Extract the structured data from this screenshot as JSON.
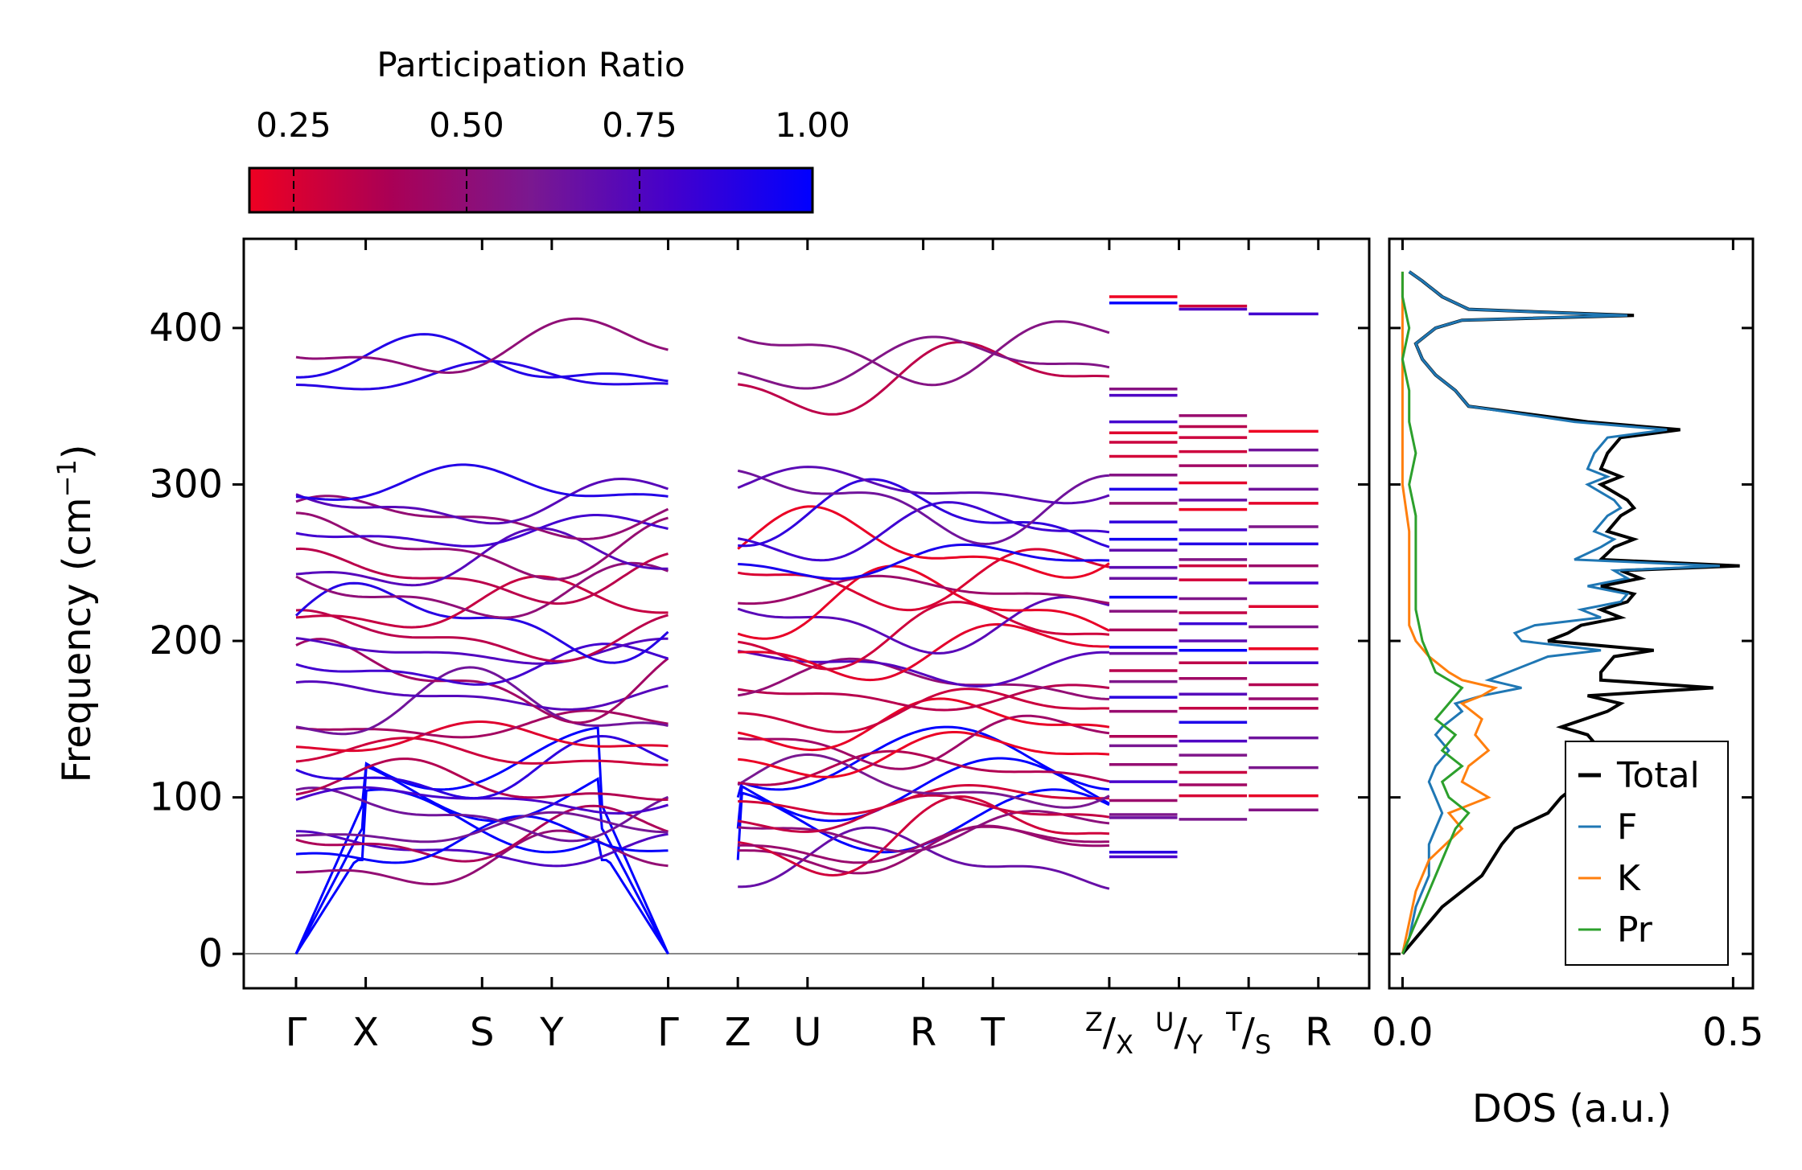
{
  "chart_data": [
    {
      "type": "line",
      "title": "",
      "xlabel": "",
      "ylabel": "Frequency (cm⁻¹)",
      "ylim": [
        -22,
        457
      ],
      "yticks": [
        0,
        100,
        200,
        300,
        400
      ],
      "colorbar": {
        "label": "Participation Ratio",
        "range": [
          0.186,
          1.0
        ],
        "ticks": [
          "0.25",
          "0.50",
          "0.75",
          "1.00"
        ],
        "tick_values": [
          0.25,
          0.5,
          0.75,
          1.0
        ],
        "colormap": [
          "#ee0022",
          "#990066",
          "#7a1890",
          "#5c00cc",
          "#0000ff"
        ]
      },
      "path_segments": [
        {
          "labels": [
            "Γ",
            "X",
            "S",
            "Y",
            "Γ"
          ],
          "positions": [
            0,
            1,
            2.67,
            3.67,
            5.34
          ]
        },
        {
          "labels": [
            "Z",
            "U",
            "R",
            "T",
            "Z"
          ],
          "positions": [
            6.34,
            7.34,
            9.0,
            10.0,
            11.67
          ]
        }
      ],
      "x_tick_labels": [
        "Γ",
        "X",
        "S",
        "Y",
        "Γ",
        "Z",
        "U",
        "R",
        "T",
        "Z/X",
        "U/Y",
        "T/S",
        "R"
      ],
      "x_tick_positions": [
        0,
        1,
        2.67,
        3.67,
        5.34,
        6.34,
        7.34,
        9.0,
        10.0,
        11.67,
        12.67,
        13.67,
        14.67
      ],
      "x_range": [
        -0.75,
        15.4
      ],
      "short_bands": {
        "Z/X": [
          420,
          416,
          361,
          357,
          340,
          333,
          327,
          318,
          306,
          297,
          288,
          276,
          265,
          258,
          247,
          240,
          228,
          219,
          207,
          196,
          192,
          181,
          174,
          164,
          155,
          139,
          133,
          121,
          110,
          98,
          89,
          87,
          65,
          62
        ],
        "U/Y": [
          414,
          412,
          344,
          337,
          330,
          321,
          312,
          301,
          290,
          284,
          271,
          262,
          252,
          248,
          239,
          227,
          218,
          211,
          200,
          194,
          186,
          176,
          166,
          157,
          148,
          136,
          127,
          116,
          108,
          101,
          86
        ],
        "T/S": [
          409,
          334,
          322,
          312,
          297,
          288,
          273,
          262,
          248,
          237,
          222,
          209,
          195,
          186,
          172,
          163,
          157,
          138,
          119,
          101,
          92
        ]
      }
    },
    {
      "type": "line",
      "xlabel": "DOS (a.u.)",
      "ylabel": "",
      "xlim": [
        -0.02,
        0.53
      ],
      "xticks": [
        0.0,
        0.5
      ],
      "xtick_labels": [
        "0.0",
        "0.5"
      ],
      "ylim": [
        -22,
        457
      ],
      "legend": "lower-right",
      "series": [
        {
          "name": "Total",
          "color": "#000000",
          "freq": [
            0,
            10,
            30,
            50,
            70,
            80,
            90,
            100,
            110,
            120,
            130,
            140,
            145,
            155,
            160,
            165,
            170,
            175,
            180,
            190,
            194,
            200,
            205,
            210,
            215,
            220,
            225,
            230,
            235,
            240,
            245,
            248,
            252,
            260,
            265,
            270,
            280,
            285,
            290,
            300,
            305,
            310,
            320,
            330,
            335,
            340,
            350,
            360,
            370,
            380,
            390,
            400,
            405,
            408,
            412,
            420,
            430,
            436
          ],
          "values": [
            0,
            0.02,
            0.06,
            0.12,
            0.15,
            0.17,
            0.22,
            0.24,
            0.27,
            0.26,
            0.3,
            0.28,
            0.24,
            0.31,
            0.33,
            0.28,
            0.47,
            0.3,
            0.3,
            0.32,
            0.38,
            0.22,
            0.25,
            0.27,
            0.33,
            0.3,
            0.34,
            0.35,
            0.3,
            0.36,
            0.33,
            0.51,
            0.3,
            0.32,
            0.35,
            0.31,
            0.33,
            0.35,
            0.34,
            0.3,
            0.33,
            0.3,
            0.31,
            0.33,
            0.42,
            0.28,
            0.1,
            0.08,
            0.05,
            0.03,
            0.02,
            0.05,
            0.09,
            0.35,
            0.1,
            0.06,
            0.03,
            0.01
          ]
        },
        {
          "name": "F",
          "color": "#1f77b4",
          "freq": [
            0,
            10,
            30,
            50,
            70,
            80,
            90,
            100,
            110,
            120,
            130,
            140,
            145,
            155,
            160,
            165,
            170,
            175,
            180,
            190,
            194,
            200,
            205,
            210,
            215,
            220,
            225,
            230,
            235,
            240,
            245,
            248,
            252,
            260,
            265,
            270,
            280,
            285,
            290,
            300,
            305,
            310,
            320,
            330,
            335,
            340,
            350,
            360,
            370,
            380,
            390,
            400,
            405,
            408,
            412,
            420,
            430,
            436
          ],
          "values": [
            0,
            0.01,
            0.02,
            0.04,
            0.04,
            0.05,
            0.06,
            0.05,
            0.04,
            0.05,
            0.07,
            0.05,
            0.06,
            0.09,
            0.08,
            0.12,
            0.18,
            0.13,
            0.16,
            0.22,
            0.3,
            0.18,
            0.17,
            0.2,
            0.3,
            0.27,
            0.33,
            0.34,
            0.28,
            0.34,
            0.32,
            0.48,
            0.26,
            0.3,
            0.32,
            0.29,
            0.31,
            0.33,
            0.32,
            0.28,
            0.31,
            0.28,
            0.29,
            0.31,
            0.4,
            0.26,
            0.1,
            0.08,
            0.05,
            0.03,
            0.02,
            0.05,
            0.09,
            0.34,
            0.1,
            0.06,
            0.03,
            0.01
          ]
        },
        {
          "name": "K",
          "color": "#ff7f0e",
          "freq": [
            0,
            20,
            40,
            60,
            80,
            90,
            100,
            110,
            120,
            130,
            140,
            150,
            160,
            165,
            170,
            175,
            180,
            190,
            200,
            210,
            230,
            250,
            270,
            300,
            330,
            360,
            400,
            436
          ],
          "values": [
            0,
            0.01,
            0.02,
            0.04,
            0.09,
            0.07,
            0.13,
            0.09,
            0.1,
            0.13,
            0.11,
            0.12,
            0.09,
            0.12,
            0.14,
            0.09,
            0.07,
            0.04,
            0.02,
            0.01,
            0.01,
            0.01,
            0.01,
            0.0,
            0.0,
            0.0,
            0.0,
            0.0
          ]
        },
        {
          "name": "Pr",
          "color": "#2ca02c",
          "freq": [
            0,
            20,
            40,
            60,
            80,
            90,
            100,
            110,
            120,
            130,
            140,
            150,
            160,
            170,
            180,
            190,
            200,
            220,
            240,
            260,
            280,
            300,
            320,
            340,
            360,
            380,
            400,
            420,
            436
          ],
          "values": [
            0,
            0.02,
            0.04,
            0.06,
            0.08,
            0.1,
            0.07,
            0.06,
            0.09,
            0.06,
            0.08,
            0.05,
            0.07,
            0.09,
            0.05,
            0.04,
            0.03,
            0.02,
            0.02,
            0.02,
            0.02,
            0.01,
            0.02,
            0.01,
            0.01,
            0.0,
            0.01,
            0.0,
            0.0
          ]
        }
      ]
    }
  ]
}
